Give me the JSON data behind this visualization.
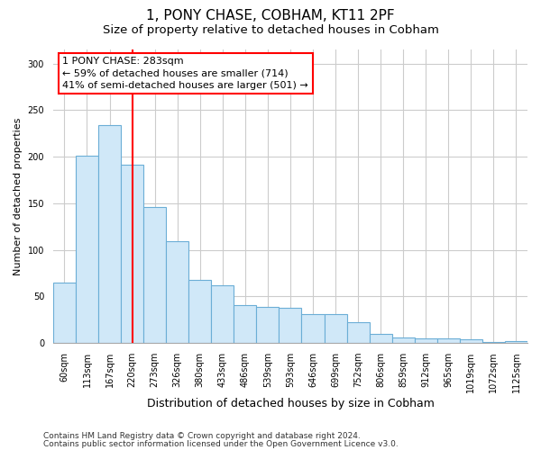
{
  "title_line1": "1, PONY CHASE, COBHAM, KT11 2PF",
  "title_line2": "Size of property relative to detached houses in Cobham",
  "xlabel": "Distribution of detached houses by size in Cobham",
  "ylabel": "Number of detached properties",
  "footer_line1": "Contains HM Land Registry data © Crown copyright and database right 2024.",
  "footer_line2": "Contains public sector information licensed under the Open Government Licence v3.0.",
  "categories": [
    "60sqm",
    "113sqm",
    "167sqm",
    "220sqm",
    "273sqm",
    "326sqm",
    "380sqm",
    "433sqm",
    "486sqm",
    "539sqm",
    "593sqm",
    "646sqm",
    "699sqm",
    "752sqm",
    "806sqm",
    "859sqm",
    "912sqm",
    "965sqm",
    "1019sqm",
    "1072sqm",
    "1125sqm"
  ],
  "values": [
    65,
    201,
    234,
    191,
    146,
    109,
    68,
    62,
    41,
    39,
    38,
    31,
    31,
    22,
    10,
    6,
    5,
    5,
    4,
    1,
    2
  ],
  "bar_color": "#d0e8f8",
  "bar_edge_color": "#6baed6",
  "annotation_text": "1 PONY CHASE: 283sqm\n← 59% of detached houses are smaller (714)\n41% of semi-detached houses are larger (501) →",
  "annotation_box_color": "white",
  "annotation_box_edge_color": "red",
  "vline_x": 3.0,
  "vline_color": "red",
  "ylim": [
    0,
    315
  ],
  "yticks": [
    0,
    50,
    100,
    150,
    200,
    250,
    300
  ],
  "grid_color": "#cccccc",
  "background_color": "white",
  "title1_fontsize": 11,
  "title2_fontsize": 9.5,
  "xlabel_fontsize": 9,
  "ylabel_fontsize": 8,
  "tick_fontsize": 7,
  "footer_fontsize": 6.5,
  "ann_fontsize": 8
}
